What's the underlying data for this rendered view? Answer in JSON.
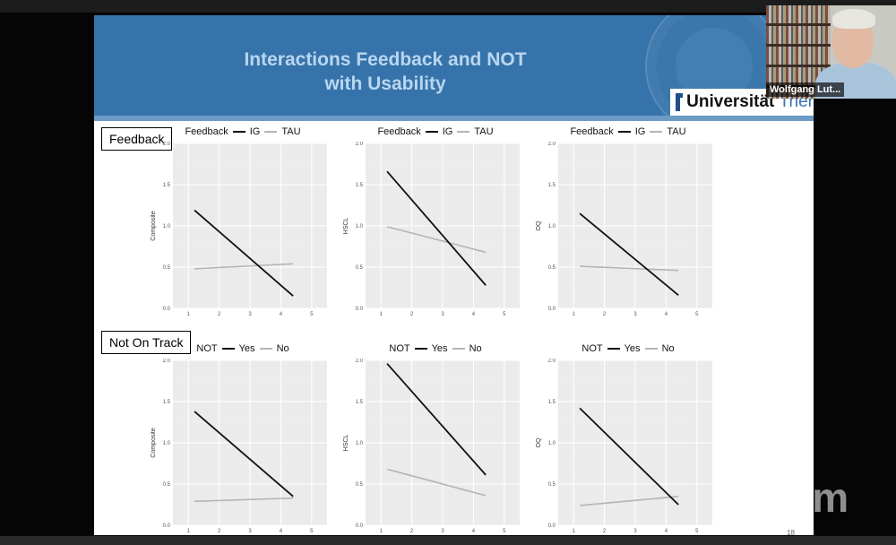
{
  "slide": {
    "title_line1": "Interactions Feedback and NOT",
    "title_line2": "with Usability",
    "logo": {
      "name": "Universität",
      "city": "Trier"
    },
    "page_number": "18"
  },
  "rows": [
    {
      "label": "Feedback",
      "legend": {
        "title": "Feedback",
        "level1": "IG",
        "level2": "TAU"
      },
      "plots": [
        {
          "ylabel": "Composite",
          "chart_data": {
            "type": "line",
            "x_ticks": [
              "1",
              "2",
              "3",
              "4",
              "5"
            ],
            "y_ticks": [
              "0.0",
              "0.5",
              "1.0",
              "1.5",
              "2.0"
            ],
            "xlim": [
              0.5,
              5.5
            ],
            "ylim": [
              0,
              2
            ],
            "series": [
              {
                "name": "IG",
                "x": [
                  1.2,
                  4.4
                ],
                "y": [
                  1.19,
                  0.15
                ]
              },
              {
                "name": "TAU",
                "x": [
                  1.2,
                  4.4
                ],
                "y": [
                  0.48,
                  0.54
                ]
              }
            ]
          }
        },
        {
          "ylabel": "HSCL",
          "chart_data": {
            "type": "line",
            "x_ticks": [
              "1",
              "2",
              "3",
              "4",
              "5"
            ],
            "y_ticks": [
              "0.0",
              "0.5",
              "1.0",
              "1.5",
              "2.0"
            ],
            "xlim": [
              0.5,
              5.5
            ],
            "ylim": [
              0,
              2
            ],
            "series": [
              {
                "name": "IG",
                "x": [
                  1.2,
                  4.4
                ],
                "y": [
                  1.66,
                  0.28
                ]
              },
              {
                "name": "TAU",
                "x": [
                  1.2,
                  4.4
                ],
                "y": [
                  0.99,
                  0.68
                ]
              }
            ]
          }
        },
        {
          "ylabel": "OQ",
          "chart_data": {
            "type": "line",
            "x_ticks": [
              "1",
              "2",
              "3",
              "4",
              "5"
            ],
            "y_ticks": [
              "0.0",
              "0.5",
              "1.0",
              "1.5",
              "2.0"
            ],
            "xlim": [
              0.5,
              5.5
            ],
            "ylim": [
              0,
              2
            ],
            "series": [
              {
                "name": "IG",
                "x": [
                  1.2,
                  4.4
                ],
                "y": [
                  1.15,
                  0.16
                ]
              },
              {
                "name": "TAU",
                "x": [
                  1.2,
                  4.4
                ],
                "y": [
                  0.51,
                  0.46
                ]
              }
            ]
          }
        }
      ]
    },
    {
      "label": "Not On Track",
      "legend": {
        "title": "NOT",
        "level1": "Yes",
        "level2": "No"
      },
      "plots": [
        {
          "ylabel": "Composite",
          "chart_data": {
            "type": "line",
            "x_ticks": [
              "1",
              "2",
              "3",
              "4",
              "5"
            ],
            "y_ticks": [
              "0.0",
              "0.5",
              "1.0",
              "1.5",
              "2.0"
            ],
            "xlim": [
              0.5,
              5.5
            ],
            "ylim": [
              0,
              2
            ],
            "series": [
              {
                "name": "Yes",
                "x": [
                  1.2,
                  4.4
                ],
                "y": [
                  1.38,
                  0.35
                ]
              },
              {
                "name": "No",
                "x": [
                  1.2,
                  4.4
                ],
                "y": [
                  0.29,
                  0.33
                ]
              }
            ]
          }
        },
        {
          "ylabel": "HSCL",
          "chart_data": {
            "type": "line",
            "x_ticks": [
              "1",
              "2",
              "3",
              "4",
              "5"
            ],
            "y_ticks": [
              "0.0",
              "0.5",
              "1.0",
              "1.5",
              "2.0"
            ],
            "xlim": [
              0.5,
              5.5
            ],
            "ylim": [
              0,
              2
            ],
            "series": [
              {
                "name": "Yes",
                "x": [
                  1.2,
                  4.4
                ],
                "y": [
                  1.96,
                  0.61
                ]
              },
              {
                "name": "No",
                "x": [
                  1.2,
                  4.4
                ],
                "y": [
                  0.68,
                  0.36
                ]
              }
            ]
          }
        },
        {
          "ylabel": "OQ",
          "chart_data": {
            "type": "line",
            "x_ticks": [
              "1",
              "2",
              "3",
              "4",
              "5"
            ],
            "y_ticks": [
              "0.0",
              "0.5",
              "1.0",
              "1.5",
              "2.0"
            ],
            "xlim": [
              0.5,
              5.5
            ],
            "ylim": [
              0,
              2
            ],
            "series": [
              {
                "name": "Yes",
                "x": [
                  1.2,
                  4.4
                ],
                "y": [
                  1.42,
                  0.25
                ]
              },
              {
                "name": "No",
                "x": [
                  1.2,
                  4.4
                ],
                "y": [
                  0.24,
                  0.35
                ]
              }
            ]
          }
        }
      ]
    }
  ],
  "colors": {
    "series1": "#111111",
    "series2": "#b5b5b5",
    "panel": "#ebebeb",
    "header": "#3673aa"
  },
  "webcam": {
    "participant_name": "Wolfgang Lut..."
  },
  "watermark": {
    "text": "zoom"
  }
}
